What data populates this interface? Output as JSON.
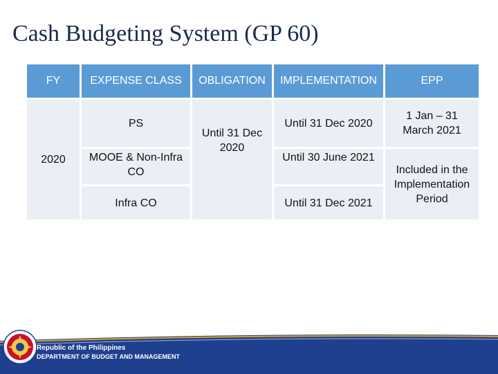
{
  "slide": {
    "title": "Cash Budgeting System (GP 60)"
  },
  "table": {
    "headers": {
      "fy": "FY",
      "expense_class": "EXPENSE CLASS",
      "obligation": "OBLIGATION",
      "implementation": "IMPLEMENTATION",
      "epp": "EPP"
    },
    "fy_value": "2020",
    "obligation_value": "Until 31 Dec 2020",
    "rows": [
      {
        "expense_class": "PS",
        "implementation": "Until 31 Dec 2020",
        "epp": "1 Jan – 31 March 2021"
      },
      {
        "expense_class": "MOOE & Non-Infra CO",
        "implementation": "Until 30 June 2021"
      },
      {
        "expense_class": "Infra CO",
        "implementation": "Until 31 Dec 2021"
      }
    ],
    "epp_merged": "Included in the Implementation Period"
  },
  "footer": {
    "line1": "Republic of the Philippines",
    "line2": "DEPARTMENT OF BUDGET AND MANAGEMENT"
  },
  "colors": {
    "header_bg": "#5b9bd5",
    "cell_bg": "#eaeff6",
    "footer_band": "#1f3f8f",
    "title": "#1b2a4e"
  }
}
